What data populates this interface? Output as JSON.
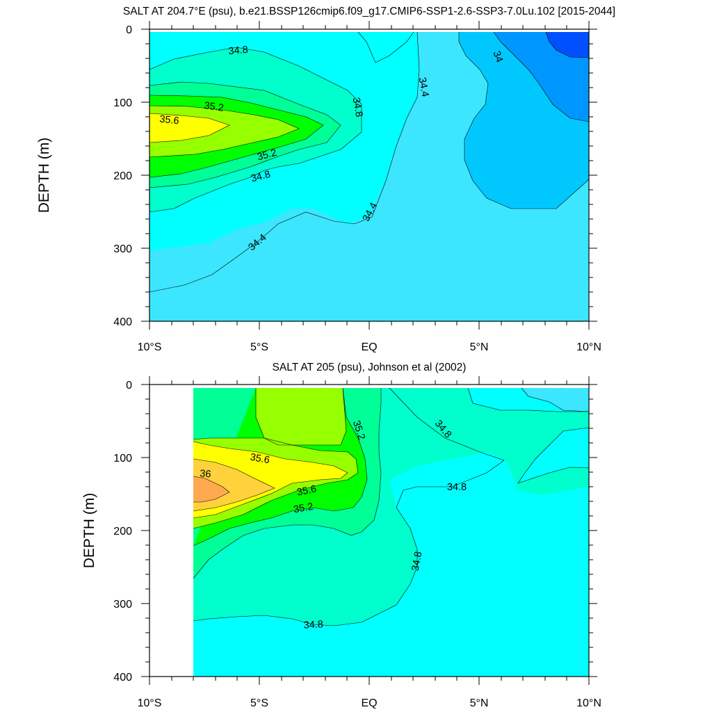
{
  "chart_data": [
    {
      "type": "heatmap",
      "title": "SALT AT 204.7°E (psu), b.e21.BSSP126cmip6.f09_g17.CMIP6-SSP1-2.6-SSP3-7.0Lu.102 [2015-2044]",
      "ylabel": "DEPTH (m)",
      "xlabel": "",
      "xlim": [
        -10,
        10
      ],
      "ylim": [
        0,
        400
      ],
      "y_inverted": true,
      "x_tick_labels": [
        "10°S",
        "5°S",
        "EQ",
        "5°N",
        "10°N"
      ],
      "y_tick_labels": [
        "0",
        "100",
        "200",
        "300",
        "400"
      ],
      "contour_labels": [
        "34.8",
        "35.2",
        "35.6",
        "35.2",
        "34.8",
        "34.4",
        "34.8",
        "34.4",
        "34.4",
        "34"
      ],
      "colors": {
        "lt_34.0": "#0050ff",
        "34.0_34.2": "#0096ff",
        "34.2_34.4": "#00c8ff",
        "34.4_34.6": "#3ce6ff",
        "34.6_34.8": "#00ffff",
        "34.8_35.0": "#00ffcc",
        "35.0_35.2": "#00ff96",
        "35.2_35.4": "#00ff00",
        "35.4_35.6": "#96ff00",
        "35.6_35.8": "#ffff00"
      }
    },
    {
      "type": "heatmap",
      "title": "SALT AT 205 (psu), Johnson et al (2002)",
      "ylabel": "DEPTH (m)",
      "xlabel": "",
      "xlim": [
        -10,
        10
      ],
      "ylim": [
        0,
        400
      ],
      "y_inverted": true,
      "data_xlim": [
        -8,
        10
      ],
      "x_tick_labels": [
        "10°S",
        "5°S",
        "EQ",
        "5°N",
        "10°N"
      ],
      "y_tick_labels": [
        "0",
        "100",
        "200",
        "300",
        "400"
      ],
      "contour_labels": [
        "35.2",
        "34.8",
        "35.6",
        "36",
        "35.6",
        "35.2",
        "34.8",
        "34.8",
        "34.8"
      ],
      "colors": {
        "34.4_34.6": "#3ce6ff",
        "34.6_34.8": "#00ffff",
        "34.8_35.0": "#00ffcc",
        "35.0_35.2": "#00ff96",
        "35.2_35.4": "#00ff00",
        "35.4_35.6": "#96ff00",
        "35.6_35.8": "#ffff00",
        "35.8_36.0": "#ffd23c",
        "gt_36.0": "#ffaa50"
      }
    }
  ]
}
